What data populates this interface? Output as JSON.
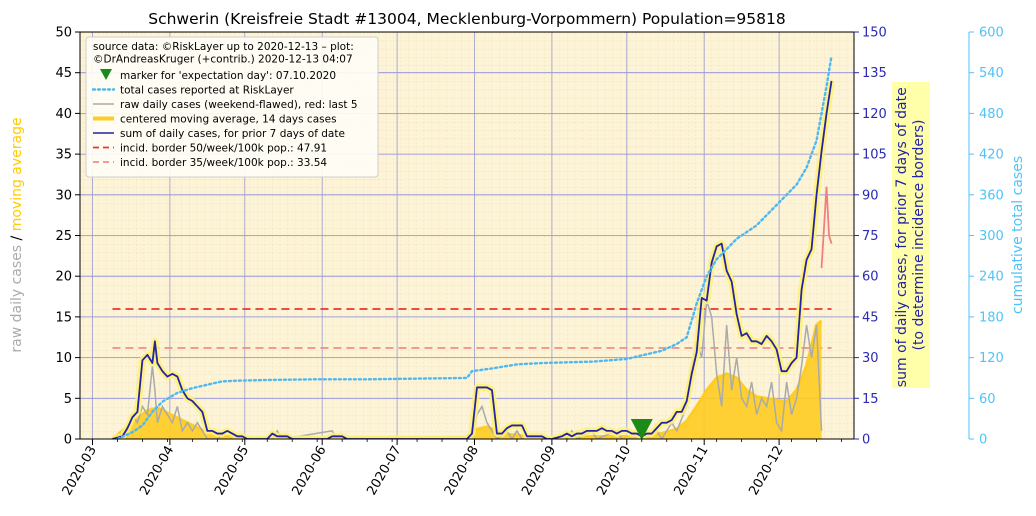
{
  "chart_data": {
    "type": "line",
    "title": "Schwerin (Kreisfreie Stadt #13004, Mecklenburg-Vorpommern) Population=95818",
    "ylabel_left_parts": [
      {
        "text": "raw daily cases",
        "color": "#aaaaaa"
      },
      {
        "text": " / ",
        "color": "#000000"
      },
      {
        "text": "moving average",
        "color": "#ffcc00"
      }
    ],
    "ylabel_mid_lines": [
      "sum of daily cases, for prior 7 days of date",
      "(to determine incidence borders)"
    ],
    "ylabel_right": "cumulative total cases",
    "ylim_left": [
      0,
      50
    ],
    "ylim_mid": [
      0,
      150
    ],
    "ylim_right": [
      0,
      600
    ],
    "yticks_left": [
      0,
      5,
      10,
      15,
      20,
      25,
      30,
      35,
      40,
      45,
      50
    ],
    "yticks_mid": [
      0,
      15,
      30,
      45,
      60,
      75,
      90,
      105,
      120,
      135,
      150
    ],
    "yticks_right": [
      0,
      60,
      120,
      180,
      240,
      300,
      360,
      420,
      480,
      540,
      600
    ],
    "x_tick_labels": [
      {
        "label": "2020-03",
        "day": 0
      },
      {
        "label": "2020-04",
        "day": 31
      },
      {
        "label": "2020-05",
        "day": 61
      },
      {
        "label": "2020-06",
        "day": 92
      },
      {
        "label": "2020-07",
        "day": 122
      },
      {
        "label": "2020-08",
        "day": 153
      },
      {
        "label": "2020-09",
        "day": 184
      },
      {
        "label": "2020-10",
        "day": 214
      },
      {
        "label": "2020-11",
        "day": 245
      },
      {
        "label": "2020-12",
        "day": 275
      }
    ],
    "x_range_days": [
      -5,
      305
    ],
    "legend": {
      "placement": "top-left",
      "source_lines": [
        "source data: ©RiskLayer up to 2020-12-13 – plot:",
        "©DrAndreasKruger (+contrib.) 2020-12-13 04:07"
      ],
      "entries": [
        {
          "label": "marker for 'expectation day': 07.10.2020",
          "kind": "marker",
          "color": "#1a8a1a"
        },
        {
          "label": "total cases reported at RiskLayer",
          "kind": "dotted",
          "color": "#4fb8f0"
        },
        {
          "label": "raw daily cases (weekend-flawed), red: last 5",
          "kind": "line",
          "color": "#aaaaaa"
        },
        {
          "label": "centered moving average, 14 days cases",
          "kind": "thick",
          "color": "#ffcc22"
        },
        {
          "label": "sum of daily cases, for prior 7 days of date",
          "kind": "line",
          "color": "#2323a8"
        },
        {
          "label": "incid. border 50/week/100k pop.: 47.91",
          "kind": "dashed",
          "color": "#e8392c"
        },
        {
          "label": "incid. border 35/week/100k pop.: 33.54",
          "kind": "dashed",
          "color": "#f08c8c"
        }
      ]
    },
    "incidence_borders": [
      {
        "value": 47.91,
        "color": "#e8392c"
      },
      {
        "value": 33.54,
        "color": "#f08c8c"
      }
    ],
    "expectation_marker": {
      "date": "07.10.2020",
      "day": 220
    },
    "series": [
      {
        "name": "sum of daily cases, for prior 7 days of date",
        "axis": "mid",
        "color": "#2323a8",
        "points": [
          [
            8,
            0
          ],
          [
            12,
            1
          ],
          [
            14,
            4
          ],
          [
            16,
            8
          ],
          [
            18,
            10
          ],
          [
            20,
            29
          ],
          [
            22,
            31
          ],
          [
            24,
            28
          ],
          [
            25,
            36
          ],
          [
            26,
            28
          ],
          [
            28,
            25
          ],
          [
            30,
            23
          ],
          [
            32,
            24
          ],
          [
            34,
            23
          ],
          [
            36,
            18
          ],
          [
            38,
            15
          ],
          [
            40,
            14
          ],
          [
            42,
            12
          ],
          [
            44,
            10
          ],
          [
            46,
            3
          ],
          [
            48,
            3
          ],
          [
            50,
            2
          ],
          [
            52,
            2
          ],
          [
            54,
            3
          ],
          [
            56,
            2
          ],
          [
            58,
            1
          ],
          [
            60,
            1
          ],
          [
            62,
            0
          ],
          [
            70,
            0
          ],
          [
            72,
            2
          ],
          [
            74,
            1
          ],
          [
            78,
            1
          ],
          [
            80,
            0
          ],
          [
            94,
            0
          ],
          [
            96,
            1
          ],
          [
            100,
            1
          ],
          [
            102,
            0
          ],
          [
            150,
            0
          ],
          [
            152,
            2
          ],
          [
            154,
            19
          ],
          [
            156,
            19
          ],
          [
            158,
            19
          ],
          [
            160,
            18
          ],
          [
            162,
            2
          ],
          [
            164,
            2
          ],
          [
            166,
            4
          ],
          [
            168,
            5
          ],
          [
            170,
            5
          ],
          [
            172,
            5
          ],
          [
            174,
            1
          ],
          [
            180,
            1
          ],
          [
            182,
            0
          ],
          [
            184,
            0
          ],
          [
            188,
            1
          ],
          [
            190,
            2
          ],
          [
            192,
            1
          ],
          [
            194,
            2
          ],
          [
            196,
            2
          ],
          [
            198,
            3
          ],
          [
            200,
            3
          ],
          [
            202,
            3
          ],
          [
            204,
            4
          ],
          [
            206,
            3
          ],
          [
            208,
            3
          ],
          [
            210,
            2
          ],
          [
            212,
            3
          ],
          [
            214,
            3
          ],
          [
            216,
            2
          ],
          [
            218,
            2
          ],
          [
            220,
            1
          ],
          [
            222,
            2
          ],
          [
            224,
            2
          ],
          [
            226,
            4
          ],
          [
            228,
            6
          ],
          [
            230,
            6
          ],
          [
            232,
            7
          ],
          [
            234,
            10
          ],
          [
            236,
            10
          ],
          [
            238,
            14
          ],
          [
            240,
            24
          ],
          [
            242,
            32
          ],
          [
            244,
            52
          ],
          [
            246,
            51
          ],
          [
            248,
            65
          ],
          [
            250,
            71
          ],
          [
            252,
            72
          ],
          [
            254,
            62
          ],
          [
            256,
            58
          ],
          [
            258,
            46
          ],
          [
            260,
            38
          ],
          [
            262,
            39
          ],
          [
            264,
            36
          ],
          [
            266,
            36
          ],
          [
            268,
            35
          ],
          [
            270,
            38
          ],
          [
            272,
            36
          ],
          [
            274,
            33
          ],
          [
            276,
            25
          ],
          [
            278,
            25
          ],
          [
            280,
            28
          ],
          [
            282,
            30
          ],
          [
            284,
            55
          ],
          [
            286,
            66
          ],
          [
            288,
            70
          ],
          [
            290,
            90
          ],
          [
            292,
            106
          ],
          [
            294,
            120
          ],
          [
            296,
            132
          ]
        ]
      },
      {
        "name": "centered moving average, 14 days cases",
        "axis": "left",
        "color": "#ffcc22",
        "points": [
          [
            8,
            0
          ],
          [
            14,
            1.5
          ],
          [
            18,
            2.5
          ],
          [
            22,
            3.5
          ],
          [
            26,
            3.8
          ],
          [
            30,
            3.2
          ],
          [
            34,
            2.6
          ],
          [
            38,
            2.0
          ],
          [
            42,
            1.4
          ],
          [
            46,
            0.8
          ],
          [
            50,
            0.5
          ],
          [
            56,
            0.3
          ],
          [
            62,
            0.1
          ],
          [
            70,
            0.1
          ],
          [
            80,
            0.1
          ],
          [
            150,
            0.2
          ],
          [
            154,
            1.2
          ],
          [
            158,
            1.5
          ],
          [
            162,
            1.0
          ],
          [
            166,
            0.6
          ],
          [
            170,
            0.5
          ],
          [
            176,
            0.2
          ],
          [
            184,
            0.1
          ],
          [
            200,
            0.3
          ],
          [
            212,
            0.3
          ],
          [
            220,
            0.3
          ],
          [
            228,
            0.7
          ],
          [
            234,
            1.2
          ],
          [
            238,
            2.2
          ],
          [
            242,
            4.0
          ],
          [
            246,
            6.0
          ],
          [
            250,
            7.5
          ],
          [
            254,
            8.0
          ],
          [
            258,
            7.5
          ],
          [
            262,
            6.0
          ],
          [
            266,
            5.2
          ],
          [
            270,
            5.0
          ],
          [
            274,
            4.8
          ],
          [
            278,
            4.6
          ],
          [
            282,
            6.0
          ],
          [
            286,
            9.0
          ],
          [
            290,
            14.0
          ],
          [
            292,
            14.5
          ]
        ]
      },
      {
        "name": "raw daily cases (weekend-flawed), red: last 5",
        "axis": "left",
        "color": "#aaaaaa",
        "points": [
          [
            8,
            0
          ],
          [
            14,
            1
          ],
          [
            16,
            3
          ],
          [
            18,
            2
          ],
          [
            20,
            4
          ],
          [
            22,
            3
          ],
          [
            24,
            9
          ],
          [
            25,
            6
          ],
          [
            26,
            2
          ],
          [
            28,
            4
          ],
          [
            30,
            3
          ],
          [
            32,
            2
          ],
          [
            34,
            4
          ],
          [
            36,
            1
          ],
          [
            38,
            2
          ],
          [
            40,
            1
          ],
          [
            42,
            2
          ],
          [
            46,
            0
          ],
          [
            50,
            0
          ],
          [
            54,
            1
          ],
          [
            58,
            0
          ],
          [
            72,
            0
          ],
          [
            74,
            1
          ],
          [
            76,
            0
          ],
          [
            96,
            1
          ],
          [
            98,
            0
          ],
          [
            152,
            0
          ],
          [
            154,
            3
          ],
          [
            156,
            4
          ],
          [
            158,
            2
          ],
          [
            160,
            1
          ],
          [
            162,
            0
          ],
          [
            166,
            1
          ],
          [
            168,
            0
          ],
          [
            170,
            1
          ],
          [
            172,
            0
          ],
          [
            190,
            0
          ],
          [
            192,
            1
          ],
          [
            194,
            0
          ],
          [
            200,
            1
          ],
          [
            202,
            0
          ],
          [
            210,
            1
          ],
          [
            212,
            0
          ],
          [
            220,
            0
          ],
          [
            226,
            1
          ],
          [
            228,
            0
          ],
          [
            232,
            2
          ],
          [
            234,
            1
          ],
          [
            238,
            4
          ],
          [
            240,
            9
          ],
          [
            242,
            12
          ],
          [
            244,
            10
          ],
          [
            246,
            17
          ],
          [
            248,
            15
          ],
          [
            250,
            8
          ],
          [
            252,
            4
          ],
          [
            254,
            14
          ],
          [
            256,
            6
          ],
          [
            258,
            10
          ],
          [
            260,
            5
          ],
          [
            262,
            4
          ],
          [
            264,
            7
          ],
          [
            266,
            3
          ],
          [
            268,
            5
          ],
          [
            270,
            4
          ],
          [
            272,
            7
          ],
          [
            274,
            2
          ],
          [
            276,
            1
          ],
          [
            278,
            7
          ],
          [
            280,
            3
          ],
          [
            282,
            5
          ],
          [
            284,
            9
          ],
          [
            286,
            14
          ],
          [
            288,
            10
          ],
          [
            290,
            14
          ],
          [
            292,
            1
          ]
        ]
      },
      {
        "name": "raw daily cases, last 5",
        "axis": "left",
        "color": "#f08080",
        "points": [
          [
            292,
            21
          ],
          [
            293,
            26
          ],
          [
            294,
            31
          ],
          [
            295,
            25
          ],
          [
            296,
            24
          ]
        ]
      },
      {
        "name": "total cases reported at RiskLayer",
        "axis": "right",
        "color": "#4fb8f0",
        "points": [
          [
            10,
            0
          ],
          [
            16,
            10
          ],
          [
            20,
            20
          ],
          [
            24,
            40
          ],
          [
            28,
            55
          ],
          [
            34,
            68
          ],
          [
            40,
            75
          ],
          [
            46,
            80
          ],
          [
            52,
            85
          ],
          [
            58,
            86
          ],
          [
            70,
            87
          ],
          [
            90,
            88
          ],
          [
            110,
            88
          ],
          [
            130,
            89
          ],
          [
            150,
            90
          ],
          [
            152,
            100
          ],
          [
            160,
            104
          ],
          [
            170,
            110
          ],
          [
            180,
            112
          ],
          [
            200,
            114
          ],
          [
            214,
            118
          ],
          [
            222,
            125
          ],
          [
            228,
            130
          ],
          [
            234,
            140
          ],
          [
            238,
            150
          ],
          [
            240,
            175
          ],
          [
            242,
            200
          ],
          [
            244,
            220
          ],
          [
            246,
            240
          ],
          [
            250,
            265
          ],
          [
            254,
            280
          ],
          [
            258,
            295
          ],
          [
            262,
            305
          ],
          [
            266,
            315
          ],
          [
            270,
            330
          ],
          [
            274,
            345
          ],
          [
            278,
            360
          ],
          [
            282,
            375
          ],
          [
            286,
            400
          ],
          [
            288,
            420
          ],
          [
            290,
            440
          ],
          [
            292,
            480
          ],
          [
            294,
            520
          ],
          [
            296,
            565
          ]
        ]
      }
    ]
  }
}
